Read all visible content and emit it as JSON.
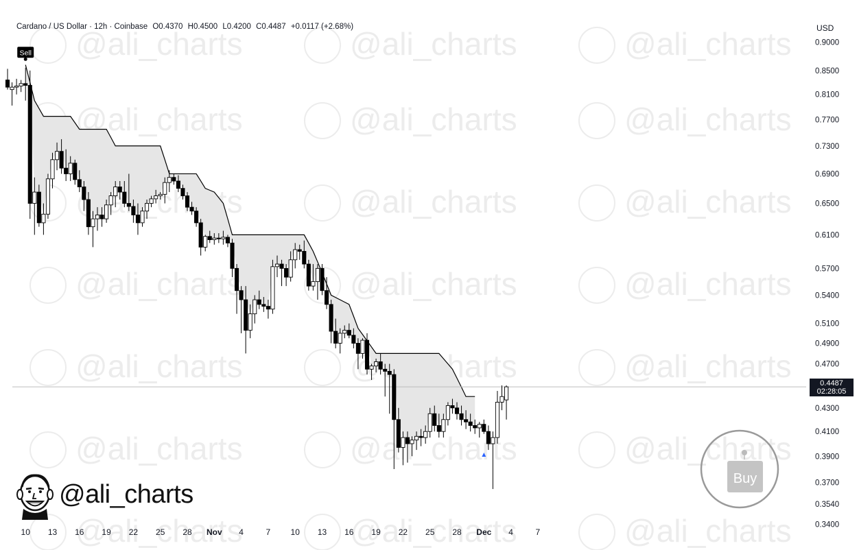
{
  "header": {
    "symbol": "Cardano / US Dollar · 12h · Coinbase",
    "open": "O0.4370",
    "high": "H0.4500",
    "low": "L0.4200",
    "close": "C0.4487",
    "change": "+0.0117 (+2.68%)"
  },
  "currency": "USD",
  "last_price": {
    "price": "0.4487",
    "countdown": "02:28:05"
  },
  "brand": {
    "handle": "@ali_charts",
    "watermark": "@ali_charts"
  },
  "signals": {
    "sell": "Sell",
    "buy": "Buy"
  },
  "colors": {
    "up": "#ffffff",
    "down": "#000000",
    "outline": "#000000",
    "band": "#e6e6e6",
    "stop_line": "#000000"
  },
  "chart_data": {
    "type": "candlestick",
    "y_ticks": [
      "0.9000",
      "0.8500",
      "0.8100",
      "0.7700",
      "0.7300",
      "0.6900",
      "0.6500",
      "0.6100",
      "0.5700",
      "0.5400",
      "0.5100",
      "0.4900",
      "0.4700",
      "0.4300",
      "0.4100",
      "0.3900",
      "0.3700",
      "0.3540",
      "0.3400"
    ],
    "ylim": [
      0.335,
      0.93
    ],
    "y_scale": "log",
    "x_ticks": [
      {
        "label": "10",
        "i": 4
      },
      {
        "label": "13",
        "i": 10
      },
      {
        "label": "16",
        "i": 16
      },
      {
        "label": "19",
        "i": 22
      },
      {
        "label": "22",
        "i": 28
      },
      {
        "label": "25",
        "i": 34
      },
      {
        "label": "28",
        "i": 40
      },
      {
        "label": "Nov",
        "i": 46
      },
      {
        "label": "4",
        "i": 52
      },
      {
        "label": "7",
        "i": 58
      },
      {
        "label": "10",
        "i": 64
      },
      {
        "label": "13",
        "i": 70
      },
      {
        "label": "16",
        "i": 76
      },
      {
        "label": "19",
        "i": 82
      },
      {
        "label": "22",
        "i": 88
      },
      {
        "label": "25",
        "i": 94
      },
      {
        "label": "28",
        "i": 100
      },
      {
        "label": "Dec",
        "i": 106
      },
      {
        "label": "4",
        "i": 112
      },
      {
        "label": "7",
        "i": 118
      }
    ],
    "candles": [
      [
        0.834,
        0.853,
        0.818,
        0.822
      ],
      [
        0.818,
        0.83,
        0.792,
        0.822
      ],
      [
        0.822,
        0.836,
        0.81,
        0.824
      ],
      [
        0.824,
        0.834,
        0.814,
        0.828
      ],
      [
        0.828,
        0.855,
        0.8,
        0.825
      ],
      [
        0.825,
        0.85,
        0.63,
        0.65
      ],
      [
        0.65,
        0.685,
        0.61,
        0.665
      ],
      [
        0.665,
        0.675,
        0.62,
        0.625
      ],
      [
        0.625,
        0.65,
        0.61,
        0.636
      ],
      [
        0.636,
        0.69,
        0.63,
        0.683
      ],
      [
        0.683,
        0.72,
        0.67,
        0.71
      ],
      [
        0.71,
        0.735,
        0.695,
        0.722
      ],
      [
        0.722,
        0.74,
        0.69,
        0.698
      ],
      [
        0.698,
        0.725,
        0.68,
        0.69
      ],
      [
        0.69,
        0.715,
        0.68,
        0.705
      ],
      [
        0.705,
        0.71,
        0.675,
        0.682
      ],
      [
        0.682,
        0.695,
        0.665,
        0.672
      ],
      [
        0.672,
        0.68,
        0.64,
        0.655
      ],
      [
        0.655,
        0.665,
        0.61,
        0.62
      ],
      [
        0.62,
        0.64,
        0.595,
        0.63
      ],
      [
        0.63,
        0.645,
        0.615,
        0.635
      ],
      [
        0.635,
        0.645,
        0.62,
        0.63
      ],
      [
        0.63,
        0.655,
        0.625,
        0.648
      ],
      [
        0.648,
        0.665,
        0.635,
        0.66
      ],
      [
        0.66,
        0.68,
        0.645,
        0.672
      ],
      [
        0.672,
        0.68,
        0.655,
        0.665
      ],
      [
        0.665,
        0.68,
        0.645,
        0.65
      ],
      [
        0.65,
        0.69,
        0.64,
        0.646
      ],
      [
        0.646,
        0.655,
        0.625,
        0.635
      ],
      [
        0.635,
        0.65,
        0.61,
        0.625
      ],
      [
        0.625,
        0.645,
        0.62,
        0.64
      ],
      [
        0.64,
        0.655,
        0.63,
        0.65
      ],
      [
        0.65,
        0.66,
        0.645,
        0.656
      ],
      [
        0.656,
        0.668,
        0.65,
        0.66
      ],
      [
        0.66,
        0.665,
        0.655,
        0.662
      ],
      [
        0.662,
        0.685,
        0.65,
        0.678
      ],
      [
        0.678,
        0.695,
        0.665,
        0.685
      ],
      [
        0.685,
        0.69,
        0.675,
        0.68
      ],
      [
        0.68,
        0.688,
        0.665,
        0.67
      ],
      [
        0.67,
        0.675,
        0.655,
        0.66
      ],
      [
        0.66,
        0.665,
        0.64,
        0.645
      ],
      [
        0.645,
        0.652,
        0.635,
        0.64
      ],
      [
        0.64,
        0.645,
        0.62,
        0.625
      ],
      [
        0.625,
        0.63,
        0.585,
        0.595
      ],
      [
        0.595,
        0.61,
        0.59,
        0.608
      ],
      [
        0.608,
        0.615,
        0.6,
        0.604
      ],
      [
        0.604,
        0.612,
        0.598,
        0.606
      ],
      [
        0.606,
        0.612,
        0.6,
        0.605
      ],
      [
        0.605,
        0.615,
        0.598,
        0.607
      ],
      [
        0.607,
        0.61,
        0.595,
        0.6
      ],
      [
        0.6,
        0.605,
        0.56,
        0.57
      ],
      [
        0.57,
        0.575,
        0.52,
        0.545
      ],
      [
        0.545,
        0.55,
        0.5,
        0.535
      ],
      [
        0.535,
        0.55,
        0.48,
        0.503
      ],
      [
        0.503,
        0.53,
        0.495,
        0.52
      ],
      [
        0.52,
        0.54,
        0.51,
        0.535
      ],
      [
        0.535,
        0.545,
        0.525,
        0.53
      ],
      [
        0.53,
        0.538,
        0.522,
        0.528
      ],
      [
        0.528,
        0.535,
        0.515,
        0.525
      ],
      [
        0.525,
        0.58,
        0.52,
        0.572
      ],
      [
        0.572,
        0.585,
        0.56,
        0.575
      ],
      [
        0.575,
        0.58,
        0.55,
        0.57
      ],
      [
        0.57,
        0.575,
        0.55,
        0.56
      ],
      [
        0.56,
        0.59,
        0.555,
        0.58
      ],
      [
        0.58,
        0.6,
        0.57,
        0.592
      ],
      [
        0.592,
        0.598,
        0.58,
        0.59
      ],
      [
        0.59,
        0.603,
        0.57,
        0.575
      ],
      [
        0.575,
        0.58,
        0.545,
        0.55
      ],
      [
        0.55,
        0.575,
        0.545,
        0.555
      ],
      [
        0.555,
        0.575,
        0.535,
        0.57
      ],
      [
        0.57,
        0.575,
        0.54,
        0.545
      ],
      [
        0.545,
        0.56,
        0.525,
        0.53
      ],
      [
        0.53,
        0.535,
        0.49,
        0.502
      ],
      [
        0.502,
        0.515,
        0.485,
        0.49
      ],
      [
        0.49,
        0.505,
        0.48,
        0.5
      ],
      [
        0.5,
        0.508,
        0.495,
        0.503
      ],
      [
        0.503,
        0.51,
        0.495,
        0.498
      ],
      [
        0.498,
        0.505,
        0.485,
        0.49
      ],
      [
        0.49,
        0.495,
        0.465,
        0.48
      ],
      [
        0.48,
        0.495,
        0.475,
        0.493
      ],
      [
        0.493,
        0.5,
        0.46,
        0.465
      ],
      [
        0.465,
        0.47,
        0.455,
        0.468
      ],
      [
        0.468,
        0.475,
        0.462,
        0.472
      ],
      [
        0.472,
        0.48,
        0.46,
        0.465
      ],
      [
        0.465,
        0.47,
        0.44,
        0.463
      ],
      [
        0.463,
        0.47,
        0.425,
        0.46
      ],
      [
        0.46,
        0.465,
        0.38,
        0.42
      ],
      [
        0.42,
        0.43,
        0.393,
        0.397
      ],
      [
        0.397,
        0.41,
        0.383,
        0.405
      ],
      [
        0.405,
        0.41,
        0.385,
        0.4
      ],
      [
        0.4,
        0.406,
        0.39,
        0.403
      ],
      [
        0.403,
        0.41,
        0.395,
        0.406
      ],
      [
        0.406,
        0.412,
        0.398,
        0.405
      ],
      [
        0.405,
        0.415,
        0.4,
        0.41
      ],
      [
        0.41,
        0.43,
        0.405,
        0.425
      ],
      [
        0.425,
        0.432,
        0.41,
        0.415
      ],
      [
        0.415,
        0.425,
        0.405,
        0.41
      ],
      [
        0.41,
        0.425,
        0.405,
        0.42
      ],
      [
        0.42,
        0.435,
        0.415,
        0.432
      ],
      [
        0.432,
        0.438,
        0.425,
        0.43
      ],
      [
        0.43,
        0.435,
        0.42,
        0.425
      ],
      [
        0.425,
        0.432,
        0.415,
        0.42
      ],
      [
        0.42,
        0.428,
        0.412,
        0.418
      ],
      [
        0.418,
        0.425,
        0.41,
        0.415
      ],
      [
        0.415,
        0.42,
        0.408,
        0.413
      ],
      [
        0.413,
        0.418,
        0.405,
        0.416
      ],
      [
        0.416,
        0.42,
        0.408,
        0.41
      ],
      [
        0.41,
        0.415,
        0.395,
        0.4
      ],
      [
        0.4,
        0.41,
        0.365,
        0.405
      ],
      [
        0.405,
        0.445,
        0.4,
        0.435
      ],
      [
        0.435,
        0.45,
        0.428,
        0.44
      ],
      [
        0.437,
        0.45,
        0.42,
        0.4487
      ]
    ],
    "stop_line": [
      [
        4,
        0.86
      ],
      [
        6,
        0.8
      ],
      [
        8,
        0.775
      ],
      [
        14,
        0.775
      ],
      [
        16,
        0.755
      ],
      [
        22,
        0.755
      ],
      [
        24,
        0.73
      ],
      [
        34,
        0.73
      ],
      [
        36,
        0.69
      ],
      [
        42,
        0.69
      ],
      [
        44,
        0.67
      ],
      [
        46,
        0.665
      ],
      [
        48,
        0.65
      ],
      [
        50,
        0.61
      ],
      [
        66,
        0.61
      ],
      [
        68,
        0.59
      ],
      [
        70,
        0.565
      ],
      [
        72,
        0.54
      ],
      [
        76,
        0.53
      ],
      [
        78,
        0.505
      ],
      [
        82,
        0.48
      ],
      [
        96,
        0.48
      ],
      [
        98,
        0.47
      ],
      [
        99,
        0.465
      ],
      [
        102,
        0.44
      ],
      [
        104,
        0.44
      ]
    ],
    "signals": [
      {
        "type": "sell",
        "i": 4,
        "price": 0.865
      },
      {
        "type": "buy",
        "i": 106,
        "price": 0.392
      }
    ],
    "last_price": 0.4487
  }
}
